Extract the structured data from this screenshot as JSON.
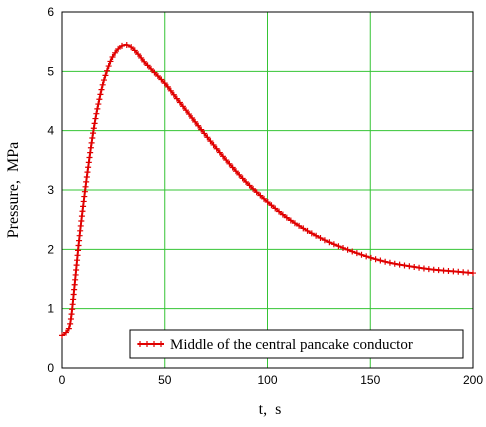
{
  "chart_data": {
    "type": "line",
    "title": "",
    "xlabel": "t,  s",
    "ylabel": "Pressure,  MPa",
    "xlim": [
      0,
      200
    ],
    "ylim": [
      0,
      6
    ],
    "x_ticks": [
      "0",
      "50",
      "100",
      "150",
      "200"
    ],
    "y_ticks": [
      "0",
      "1",
      "2",
      "3",
      "4",
      "5",
      "6"
    ],
    "grid": true,
    "legend_position": "bottom-right",
    "series": [
      {
        "name": "Middle of the central pancake conductor",
        "color": "#e00000",
        "marker": "plus",
        "x": [
          0,
          2,
          4,
          6,
          8,
          10,
          12,
          14,
          16,
          18,
          20,
          22,
          24,
          26,
          28,
          30,
          32,
          34,
          36,
          38,
          40,
          45,
          50,
          55,
          60,
          70,
          80,
          90,
          100,
          110,
          120,
          130,
          140,
          150,
          160,
          170,
          180,
          190,
          200
        ],
        "y": [
          0.55,
          0.6,
          0.75,
          1.35,
          2.05,
          2.65,
          3.2,
          3.7,
          4.15,
          4.5,
          4.8,
          5.02,
          5.2,
          5.32,
          5.4,
          5.44,
          5.44,
          5.4,
          5.33,
          5.25,
          5.16,
          4.98,
          4.8,
          4.58,
          4.36,
          3.92,
          3.5,
          3.12,
          2.8,
          2.52,
          2.3,
          2.12,
          1.98,
          1.86,
          1.77,
          1.71,
          1.66,
          1.63,
          1.6
        ]
      }
    ]
  }
}
